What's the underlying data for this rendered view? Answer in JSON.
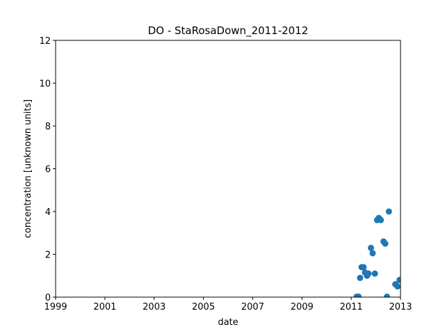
{
  "chart_data": {
    "type": "scatter",
    "title": "DO - StaRosaDown_2011-2012",
    "xlabel": "date",
    "ylabel": "concentration [unknown units]",
    "xlim": [
      1999,
      2013
    ],
    "ylim": [
      0,
      12
    ],
    "x_ticks": [
      "1999",
      "2001",
      "2003",
      "2005",
      "2007",
      "2009",
      "2011",
      "2013"
    ],
    "y_ticks": [
      "0",
      "2",
      "4",
      "6",
      "8",
      "10",
      "12"
    ],
    "grid": false,
    "marker_color": "#1f77b4",
    "series": [
      {
        "name": "DO",
        "points": [
          {
            "x": 2011.22,
            "y": 0.02
          },
          {
            "x": 2011.3,
            "y": 0.02
          },
          {
            "x": 2011.36,
            "y": 0.9
          },
          {
            "x": 2011.42,
            "y": 1.4
          },
          {
            "x": 2011.5,
            "y": 1.4
          },
          {
            "x": 2011.56,
            "y": 1.15
          },
          {
            "x": 2011.64,
            "y": 1.0
          },
          {
            "x": 2011.7,
            "y": 1.1
          },
          {
            "x": 2011.8,
            "y": 2.3
          },
          {
            "x": 2011.87,
            "y": 2.05
          },
          {
            "x": 2011.96,
            "y": 1.1
          },
          {
            "x": 2012.05,
            "y": 3.6
          },
          {
            "x": 2012.12,
            "y": 3.7
          },
          {
            "x": 2012.2,
            "y": 3.6
          },
          {
            "x": 2012.31,
            "y": 2.6
          },
          {
            "x": 2012.38,
            "y": 2.5
          },
          {
            "x": 2012.45,
            "y": 0.02
          },
          {
            "x": 2012.53,
            "y": 4.0
          },
          {
            "x": 2012.79,
            "y": 0.6
          },
          {
            "x": 2012.88,
            "y": 0.5
          },
          {
            "x": 2012.96,
            "y": 0.8
          }
        ]
      }
    ]
  }
}
